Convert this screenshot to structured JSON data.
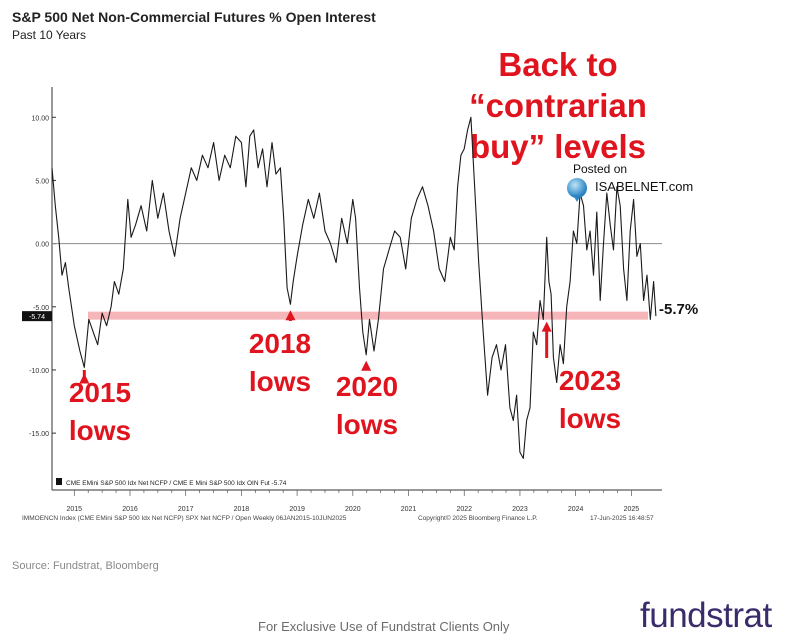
{
  "title": "S&P 500 Net Non-Commercial Futures % Open Interest",
  "subtitle": "Past 10 Years",
  "headline": [
    "Back to “contrarian",
    "buy” levels"
  ],
  "posted_on": "Posted on",
  "posted_brand": "ISABELNET.com",
  "current_value_label": "-5.7%",
  "current_value_tag": "-5.74",
  "legend_text": "CME EMini S&P 500 Idx Net NCFP / CME E Mini S&P 500 Idx OIN Fut -5.74",
  "footer_left": "IMMOENCN Index (CME EMini S&P 500 Idx Net NCFP) SPX Net NCFP / Open  Weekly 06JAN2015-10JUN2025",
  "footer_mid": "Copyright© 2025 Bloomberg Finance L.P.",
  "footer_right": "17-Jun-2025 16:48:57",
  "source": "Source: Fundstrat, Bloomberg",
  "disclaimer": "For Exclusive Use of Fundstrat Clients Only",
  "logo": "fundstrat",
  "colors": {
    "line": "#1a1a1a",
    "threshold_band": "#f4a9ad",
    "annotation": "#e0141e",
    "zero_line": "#8c8c8c",
    "logo": "#3a2b6b"
  },
  "chart_data": {
    "type": "line",
    "title": "S&P 500 Net Non-Commercial Futures % Open Interest",
    "subtitle": "Past 10 Years",
    "xlim": [
      2014.6,
      2025.55
    ],
    "ylim": [
      -19.5,
      12
    ],
    "yticks": [
      10,
      5,
      0,
      -5,
      -10,
      -15
    ],
    "ytick_labels": [
      "10.00",
      "5.00",
      "0.00",
      "-5.00",
      "-10.00",
      "-15.00"
    ],
    "xticks": [
      2015,
      2016,
      2017,
      2018,
      2019,
      2020,
      2021,
      2022,
      2023,
      2024,
      2025
    ],
    "xtick_labels": [
      "2015",
      "2016",
      "2017",
      "2018",
      "2019",
      "2020",
      "2021",
      "2022",
      "2023",
      "2024",
      "2025"
    ],
    "threshold": -5.7,
    "reference_line": 0,
    "grid": false,
    "series": [
      {
        "name": "CME EMini S&P 500 Idx Net NCFP / CME E Mini S&P 500 Idx OIN Fut",
        "x": [
          2014.6,
          2014.66,
          2014.72,
          2014.78,
          2014.84,
          2014.9,
          2015.0,
          2015.1,
          2015.18,
          2015.26,
          2015.34,
          2015.42,
          2015.5,
          2015.58,
          2015.66,
          2015.72,
          2015.8,
          2015.88,
          2015.96,
          2016.02,
          2016.1,
          2016.2,
          2016.3,
          2016.4,
          2016.5,
          2016.6,
          2016.7,
          2016.8,
          2016.9,
          2017.0,
          2017.1,
          2017.2,
          2017.3,
          2017.4,
          2017.5,
          2017.6,
          2017.7,
          2017.8,
          2017.9,
          2018.0,
          2018.08,
          2018.15,
          2018.22,
          2018.3,
          2018.38,
          2018.46,
          2018.55,
          2018.62,
          2018.7,
          2018.76,
          2018.82,
          2018.88,
          2018.93,
          2019.0,
          2019.1,
          2019.2,
          2019.3,
          2019.4,
          2019.5,
          2019.6,
          2019.7,
          2019.8,
          2019.9,
          2020.0,
          2020.05,
          2020.12,
          2020.18,
          2020.24,
          2020.3,
          2020.38,
          2020.46,
          2020.55,
          2020.65,
          2020.75,
          2020.85,
          2020.95,
          2021.05,
          2021.15,
          2021.25,
          2021.35,
          2021.45,
          2021.55,
          2021.65,
          2021.75,
          2021.82,
          2021.88,
          2021.94,
          2022.0,
          2022.06,
          2022.12,
          2022.18,
          2022.26,
          2022.34,
          2022.42,
          2022.5,
          2022.58,
          2022.66,
          2022.74,
          2022.82,
          2022.88,
          2022.94,
          2023.0,
          2023.06,
          2023.12,
          2023.18,
          2023.24,
          2023.3,
          2023.36,
          2023.42,
          2023.48,
          2023.52,
          2023.56,
          2023.6,
          2023.66,
          2023.72,
          2023.78,
          2023.84,
          2023.9,
          2023.96,
          2024.02,
          2024.08,
          2024.14,
          2024.2,
          2024.26,
          2024.32,
          2024.38,
          2024.44,
          2024.5,
          2024.56,
          2024.62,
          2024.68,
          2024.74,
          2024.8,
          2024.86,
          2024.92,
          2024.98,
          2025.04,
          2025.1,
          2025.16,
          2025.22,
          2025.28,
          2025.34,
          2025.4,
          2025.44
        ],
        "y": [
          6.0,
          3.0,
          0.5,
          -2.5,
          -1.5,
          -3.5,
          -6.5,
          -8.5,
          -9.8,
          -6.0,
          -7.0,
          -8.0,
          -5.5,
          -6.5,
          -5.0,
          -3.0,
          -4.0,
          -2.0,
          3.5,
          0.5,
          1.5,
          3.0,
          1.0,
          5.0,
          2.0,
          4.0,
          1.0,
          -1.0,
          2.0,
          4.0,
          6.0,
          5.0,
          7.0,
          6.0,
          8.0,
          5.0,
          7.0,
          6.0,
          8.5,
          8.0,
          4.5,
          8.5,
          9.0,
          6.0,
          7.5,
          4.5,
          8.0,
          5.5,
          6.0,
          2.0,
          -3.5,
          -4.8,
          -3.0,
          -1.0,
          1.5,
          3.5,
          2.0,
          4.0,
          1.0,
          0.0,
          -1.5,
          2.0,
          0.0,
          3.5,
          2.0,
          -3.5,
          -7.0,
          -8.8,
          -6.0,
          -8.5,
          -6.0,
          -2.0,
          -0.5,
          1.0,
          0.5,
          -2.0,
          2.0,
          3.5,
          4.5,
          3.0,
          1.0,
          -2.0,
          -3.0,
          0.5,
          -0.5,
          4.5,
          7.0,
          7.5,
          9.0,
          10.0,
          5.0,
          -1.5,
          -7.0,
          -12.0,
          -9.0,
          -8.0,
          -10.0,
          -8.0,
          -13.0,
          -14.0,
          -12.0,
          -16.5,
          -17.0,
          -14.0,
          -13.0,
          -7.0,
          -8.0,
          -4.5,
          -6.0,
          0.5,
          -3.0,
          -4.0,
          -9.0,
          -11.0,
          -8.0,
          -9.5,
          -5.0,
          -3.0,
          1.0,
          0.0,
          4.0,
          3.0,
          -0.5,
          1.0,
          -2.5,
          2.5,
          -4.5,
          0.0,
          4.0,
          1.5,
          -0.5,
          4.5,
          3.0,
          -2.0,
          -4.5,
          1.0,
          3.5,
          -1.0,
          0.0,
          -4.5,
          -2.5,
          -6.0,
          -3.0,
          -5.74
        ]
      }
    ],
    "annotations": [
      {
        "label": [
          "2015",
          "lows"
        ],
        "x": 2015.18,
        "y": -9.8
      },
      {
        "label": [
          "2018",
          "lows"
        ],
        "x": 2018.88,
        "y": -4.8
      },
      {
        "label": [
          "2020",
          "lows"
        ],
        "x": 2020.24,
        "y": -8.8
      },
      {
        "label": [
          "2023",
          "lows"
        ],
        "x": 2023.48,
        "y": -5.7
      }
    ]
  }
}
